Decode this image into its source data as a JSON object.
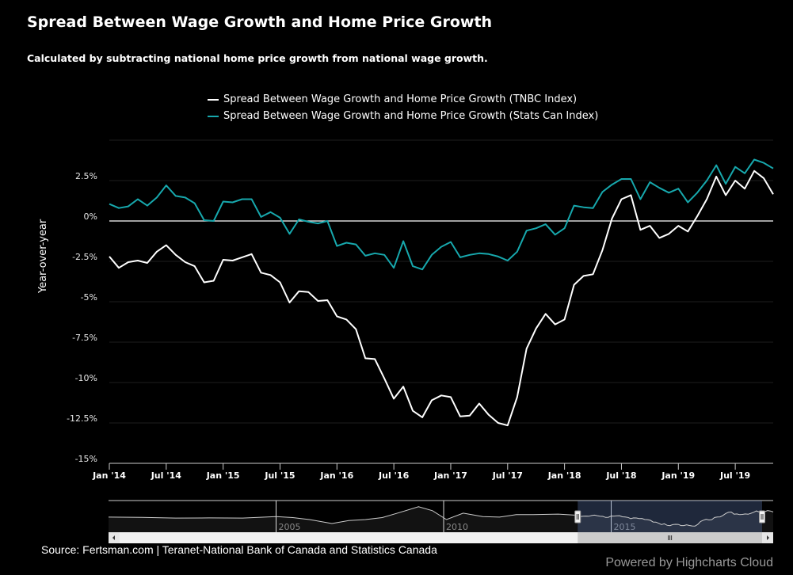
{
  "chart_data": {
    "type": "line",
    "title": "Spread Between Wage Growth and Home Price Growth",
    "subtitle": "Calculated by subtracting national home price growth from national wage growth.",
    "ylabel": "Year-over-year",
    "ylim": [
      -15,
      5
    ],
    "yticks": [
      "-15%",
      "-12.5%",
      "-10%",
      "-7.5%",
      "-5%",
      "-2.5%",
      "0%",
      "2.5%"
    ],
    "ytick_values": [
      -15,
      -12.5,
      -10,
      -7.5,
      -5,
      -2.5,
      0,
      2.5
    ],
    "xticks": [
      "Jan '14",
      "Jul '14",
      "Jan '15",
      "Jul '15",
      "Jan '16",
      "Jul '16",
      "Jan '17",
      "Jul '17",
      "Jan '18",
      "Jul '18",
      "Jan '19",
      "Jul '19"
    ],
    "x_start": "2014-01",
    "x_end": "2019-11",
    "grid": true,
    "legend_position": "top-center",
    "series": [
      {
        "name": "Spread Between Wage Growth and Home Price Growth (TNBC Index)",
        "color": "#ffffff",
        "values": [
          -2.2,
          -2.9,
          -2.55,
          -2.45,
          -2.6,
          -1.9,
          -1.5,
          -2.1,
          -2.55,
          -2.8,
          -3.8,
          -3.7,
          -2.4,
          -2.45,
          -2.25,
          -2.05,
          -3.2,
          -3.35,
          -3.8,
          -5.05,
          -4.35,
          -4.4,
          -4.95,
          -4.9,
          -5.9,
          -6.1,
          -6.7,
          -8.5,
          -8.55,
          -9.75,
          -11.0,
          -10.25,
          -11.75,
          -12.15,
          -11.1,
          -10.8,
          -10.9,
          -12.1,
          -12.05,
          -11.3,
          -12.0,
          -12.5,
          -12.65,
          -10.9,
          -7.9,
          -6.65,
          -5.75,
          -6.4,
          -6.1,
          -3.95,
          -3.4,
          -3.3,
          -1.8,
          0.15,
          1.35,
          1.6,
          -0.55,
          -0.3,
          -1.05,
          -0.8,
          -0.3,
          -0.65,
          0.3,
          1.35,
          2.75,
          1.6,
          2.5,
          2.0,
          3.1,
          2.65,
          1.65
        ]
      },
      {
        "name": "Spread Between Wage Growth and Home Price Growth (Stats Can Index)",
        "color": "#17a8ad",
        "values": [
          1.05,
          0.8,
          0.9,
          1.35,
          0.95,
          1.45,
          2.2,
          1.55,
          1.45,
          1.1,
          0.05,
          0.0,
          1.2,
          1.15,
          1.35,
          1.35,
          0.25,
          0.55,
          0.2,
          -0.8,
          0.1,
          -0.05,
          -0.15,
          0.0,
          -1.55,
          -1.35,
          -1.45,
          -2.15,
          -2.0,
          -2.1,
          -2.9,
          -1.25,
          -2.8,
          -3.0,
          -2.1,
          -1.6,
          -1.3,
          -2.25,
          -2.1,
          -2.0,
          -2.05,
          -2.2,
          -2.45,
          -1.9,
          -0.6,
          -0.45,
          -0.2,
          -0.85,
          -0.45,
          0.95,
          0.85,
          0.8,
          1.8,
          2.25,
          2.6,
          2.6,
          1.35,
          2.4,
          2.05,
          1.75,
          2.0,
          1.15,
          1.75,
          2.5,
          3.45,
          2.3,
          3.35,
          2.95,
          3.8,
          3.6,
          3.25
        ]
      }
    ],
    "navigator": {
      "xticks": [
        "2005",
        "2010",
        "2015"
      ],
      "x_range": [
        "2000-01",
        "2019-11"
      ],
      "selected_range": [
        "2014-01",
        "2019-11"
      ],
      "points": [
        [
          "2000-01",
          -3.5
        ],
        [
          "2001-01",
          -3.8
        ],
        [
          "2002-01",
          -4.5
        ],
        [
          "2003-01",
          -4.3
        ],
        [
          "2004-01",
          -4.5
        ],
        [
          "2005-01",
          -3.0
        ],
        [
          "2005-07",
          -4.0
        ],
        [
          "2006-01",
          -6.0
        ],
        [
          "2006-09",
          -10.0
        ],
        [
          "2007-03",
          -7.0
        ],
        [
          "2007-09",
          -6.0
        ],
        [
          "2008-03",
          -4.0
        ],
        [
          "2008-09",
          1.0
        ],
        [
          "2009-04",
          7.0
        ],
        [
          "2009-09",
          3.0
        ],
        [
          "2010-02",
          -6.0
        ],
        [
          "2010-08",
          0.5
        ],
        [
          "2011-03",
          -3.0
        ],
        [
          "2011-09",
          -3.5
        ],
        [
          "2012-03",
          -1.0
        ],
        [
          "2012-09",
          -1.0
        ],
        [
          "2013-06",
          -0.5
        ],
        [
          "2013-12",
          -1.5
        ]
      ]
    }
  },
  "footer": {
    "source": "Source: Fertsman.com | Teranet-National Bank of Canada and Statistics Canada",
    "credits": "Powered by Highcharts Cloud"
  }
}
